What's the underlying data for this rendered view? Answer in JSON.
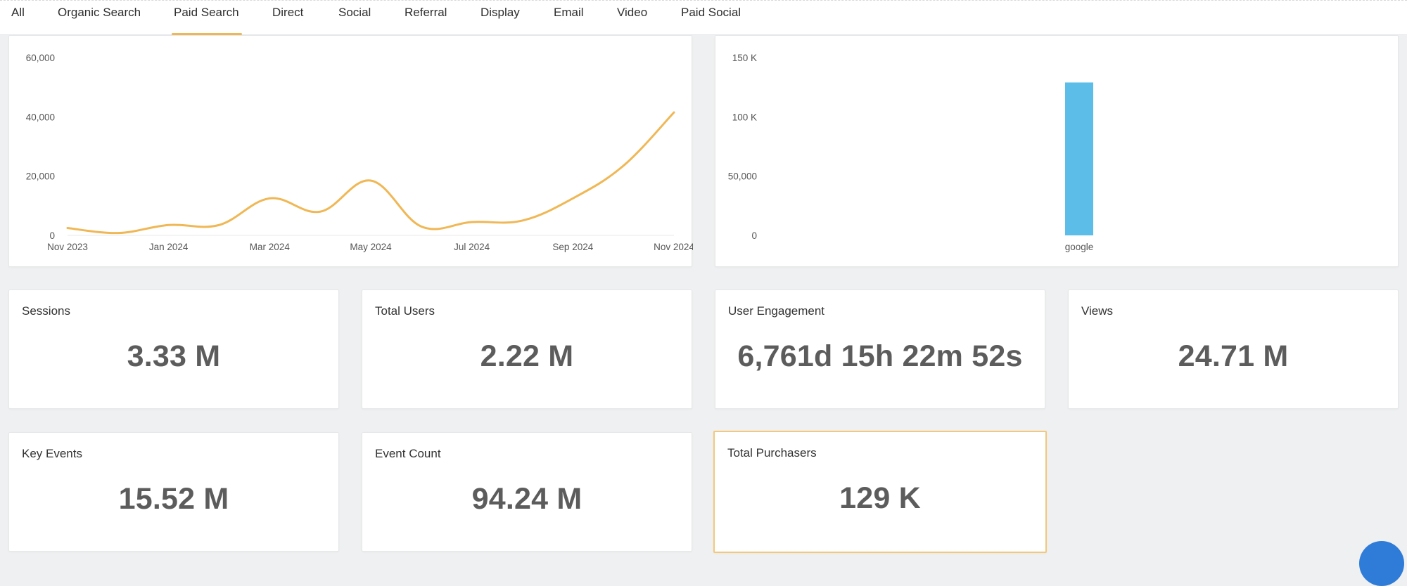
{
  "tabs": [
    {
      "label": "All"
    },
    {
      "label": "Organic Search"
    },
    {
      "label": "Paid Search",
      "active": true
    },
    {
      "label": "Direct"
    },
    {
      "label": "Social"
    },
    {
      "label": "Referral"
    },
    {
      "label": "Display"
    },
    {
      "label": "Email"
    },
    {
      "label": "Video"
    },
    {
      "label": "Paid Social"
    }
  ],
  "colors": {
    "accent": "#f0b755",
    "line": "#f0b755",
    "bar": "#5bbde8",
    "kpi_value": "#5c5c5c",
    "highlight_border": "#f3c87c"
  },
  "chart_data": [
    {
      "type": "line",
      "x": [
        "Nov 2023",
        "Dec 2023",
        "Jan 2024",
        "Feb 2024",
        "Mar 2024",
        "Apr 2024",
        "May 2024",
        "Jun 2024",
        "Jul 2024",
        "Aug 2024",
        "Sep 2024",
        "Oct 2024",
        "Nov 2024"
      ],
      "x_ticks": [
        "Nov 2023",
        "Jan 2024",
        "Mar 2024",
        "May 2024",
        "Jul 2024",
        "Sep 2024",
        "Nov 2024"
      ],
      "values": [
        2500,
        800,
        3500,
        3500,
        12500,
        8000,
        18500,
        3000,
        4500,
        5000,
        12500,
        23500,
        41500
      ],
      "ylim": [
        0,
        60000
      ],
      "y_ticks": [
        "0",
        "20,000",
        "40,000",
        "60,000"
      ],
      "grid": false
    },
    {
      "type": "bar",
      "categories": [
        "google"
      ],
      "values": [
        129000
      ],
      "ylim": [
        0,
        150000
      ],
      "y_ticks": [
        "0",
        "50,000",
        "100 K",
        "150 K"
      ],
      "grid": false
    }
  ],
  "kpis": [
    {
      "title": "Sessions",
      "value": "3.33 M"
    },
    {
      "title": "Total Users",
      "value": "2.22 M"
    },
    {
      "title": "User Engagement",
      "value": "6,761d 15h 22m 52s"
    },
    {
      "title": "Views",
      "value": "24.71 M"
    },
    {
      "title": "Key Events",
      "value": "15.52 M"
    },
    {
      "title": "Event Count",
      "value": "94.24 M"
    },
    {
      "title": "Total Purchasers",
      "value": "129 K",
      "highlighted": true
    }
  ]
}
